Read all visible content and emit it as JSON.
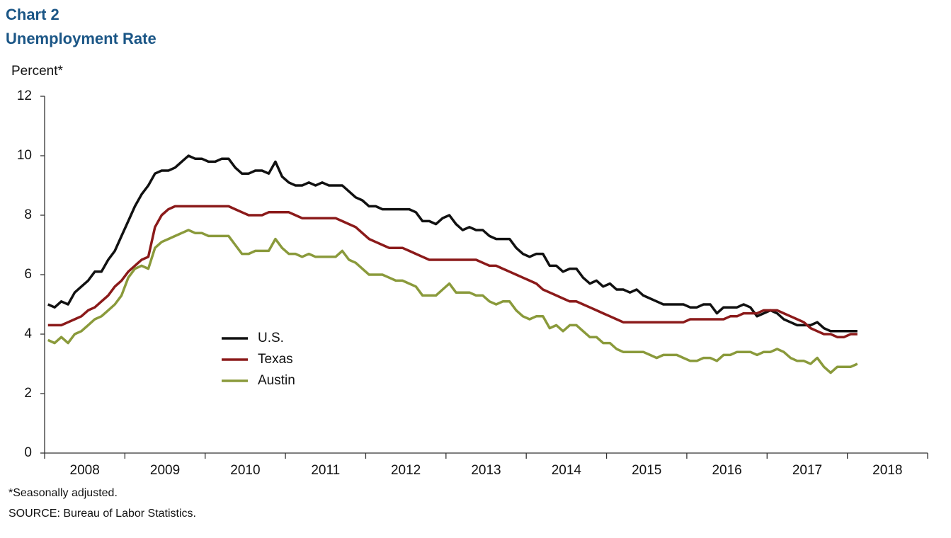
{
  "chart_data": {
    "type": "line",
    "title": "Chart 2",
    "subtitle": "Unemployment  Rate",
    "ylabel": "Percent*",
    "footnote": "*Seasonally adjusted.",
    "source": "SOURCE: Bureau of Labor Statistics.",
    "xlim": [
      2008,
      2019
    ],
    "xticks": [
      2008,
      2009,
      2010,
      2011,
      2012,
      2013,
      2014,
      2015,
      2016,
      2017,
      2018
    ],
    "ylim": [
      0,
      12
    ],
    "yticks": [
      0,
      2,
      4,
      6,
      8,
      10,
      12
    ],
    "x": [
      2008.042,
      2008.125,
      2008.208,
      2008.292,
      2008.375,
      2008.458,
      2008.542,
      2008.625,
      2008.708,
      2008.792,
      2008.875,
      2008.958,
      2009.042,
      2009.125,
      2009.208,
      2009.292,
      2009.375,
      2009.458,
      2009.542,
      2009.625,
      2009.708,
      2009.792,
      2009.875,
      2009.958,
      2010.042,
      2010.125,
      2010.208,
      2010.292,
      2010.375,
      2010.458,
      2010.542,
      2010.625,
      2010.708,
      2010.792,
      2010.875,
      2010.958,
      2011.042,
      2011.125,
      2011.208,
      2011.292,
      2011.375,
      2011.458,
      2011.542,
      2011.625,
      2011.708,
      2011.792,
      2011.875,
      2011.958,
      2012.042,
      2012.125,
      2012.208,
      2012.292,
      2012.375,
      2012.458,
      2012.542,
      2012.625,
      2012.708,
      2012.792,
      2012.875,
      2012.958,
      2013.042,
      2013.125,
      2013.208,
      2013.292,
      2013.375,
      2013.458,
      2013.542,
      2013.625,
      2013.708,
      2013.792,
      2013.875,
      2013.958,
      2014.042,
      2014.125,
      2014.208,
      2014.292,
      2014.375,
      2014.458,
      2014.542,
      2014.625,
      2014.708,
      2014.792,
      2014.875,
      2014.958,
      2015.042,
      2015.125,
      2015.208,
      2015.292,
      2015.375,
      2015.458,
      2015.542,
      2015.625,
      2015.708,
      2015.792,
      2015.875,
      2015.958,
      2016.042,
      2016.125,
      2016.208,
      2016.292,
      2016.375,
      2016.458,
      2016.542,
      2016.625,
      2016.708,
      2016.792,
      2016.875,
      2016.958,
      2017.042,
      2017.125,
      2017.208,
      2017.292,
      2017.375,
      2017.458,
      2017.542,
      2017.625,
      2017.708,
      2017.792,
      2017.875,
      2017.958,
      2018.042,
      2018.125
    ],
    "series": [
      {
        "name": "U.S.",
        "color": "#111111",
        "values": [
          5.0,
          4.9,
          5.1,
          5.0,
          5.4,
          5.6,
          5.8,
          6.1,
          6.1,
          6.5,
          6.8,
          7.3,
          7.8,
          8.3,
          8.7,
          9.0,
          9.4,
          9.5,
          9.5,
          9.6,
          9.8,
          10.0,
          9.9,
          9.9,
          9.8,
          9.8,
          9.9,
          9.9,
          9.6,
          9.4,
          9.4,
          9.5,
          9.5,
          9.4,
          9.8,
          9.3,
          9.1,
          9.0,
          9.0,
          9.1,
          9.0,
          9.1,
          9.0,
          9.0,
          9.0,
          8.8,
          8.6,
          8.5,
          8.3,
          8.3,
          8.2,
          8.2,
          8.2,
          8.2,
          8.2,
          8.1,
          7.8,
          7.8,
          7.7,
          7.9,
          8.0,
          7.7,
          7.5,
          7.6,
          7.5,
          7.5,
          7.3,
          7.2,
          7.2,
          7.2,
          6.9,
          6.7,
          6.6,
          6.7,
          6.7,
          6.3,
          6.3,
          6.1,
          6.2,
          6.2,
          5.9,
          5.7,
          5.8,
          5.6,
          5.7,
          5.5,
          5.5,
          5.4,
          5.5,
          5.3,
          5.2,
          5.1,
          5.0,
          5.0,
          5.0,
          5.0,
          4.9,
          4.9,
          5.0,
          5.0,
          4.7,
          4.9,
          4.9,
          4.9,
          5.0,
          4.9,
          4.6,
          4.7,
          4.8,
          4.7,
          4.5,
          4.4,
          4.3,
          4.3,
          4.3,
          4.4,
          4.2,
          4.1,
          4.1,
          4.1,
          4.1,
          4.1
        ]
      },
      {
        "name": "Texas",
        "color": "#8b1a1a",
        "values": [
          4.3,
          4.3,
          4.3,
          4.4,
          4.5,
          4.6,
          4.8,
          4.9,
          5.1,
          5.3,
          5.6,
          5.8,
          6.1,
          6.3,
          6.5,
          6.6,
          7.6,
          8.0,
          8.2,
          8.3,
          8.3,
          8.3,
          8.3,
          8.3,
          8.3,
          8.3,
          8.3,
          8.3,
          8.2,
          8.1,
          8.0,
          8.0,
          8.0,
          8.1,
          8.1,
          8.1,
          8.1,
          8.0,
          7.9,
          7.9,
          7.9,
          7.9,
          7.9,
          7.9,
          7.8,
          7.7,
          7.6,
          7.4,
          7.2,
          7.1,
          7.0,
          6.9,
          6.9,
          6.9,
          6.8,
          6.7,
          6.6,
          6.5,
          6.5,
          6.5,
          6.5,
          6.5,
          6.5,
          6.5,
          6.5,
          6.4,
          6.3,
          6.3,
          6.2,
          6.1,
          6.0,
          5.9,
          5.8,
          5.7,
          5.5,
          5.4,
          5.3,
          5.2,
          5.1,
          5.1,
          5.0,
          4.9,
          4.8,
          4.7,
          4.6,
          4.5,
          4.4,
          4.4,
          4.4,
          4.4,
          4.4,
          4.4,
          4.4,
          4.4,
          4.4,
          4.4,
          4.5,
          4.5,
          4.5,
          4.5,
          4.5,
          4.5,
          4.6,
          4.6,
          4.7,
          4.7,
          4.7,
          4.8,
          4.8,
          4.8,
          4.7,
          4.6,
          4.5,
          4.4,
          4.2,
          4.1,
          4.0,
          4.0,
          3.9,
          3.9,
          4.0,
          4.0
        ]
      },
      {
        "name": "Austin",
        "color": "#8a9a3b",
        "values": [
          3.8,
          3.7,
          3.9,
          3.7,
          4.0,
          4.1,
          4.3,
          4.5,
          4.6,
          4.8,
          5.0,
          5.3,
          5.9,
          6.2,
          6.3,
          6.2,
          6.9,
          7.1,
          7.2,
          7.3,
          7.4,
          7.5,
          7.4,
          7.4,
          7.3,
          7.3,
          7.3,
          7.3,
          7.0,
          6.7,
          6.7,
          6.8,
          6.8,
          6.8,
          7.2,
          6.9,
          6.7,
          6.7,
          6.6,
          6.7,
          6.6,
          6.6,
          6.6,
          6.6,
          6.8,
          6.5,
          6.4,
          6.2,
          6.0,
          6.0,
          6.0,
          5.9,
          5.8,
          5.8,
          5.7,
          5.6,
          5.3,
          5.3,
          5.3,
          5.5,
          5.7,
          5.4,
          5.4,
          5.4,
          5.3,
          5.3,
          5.1,
          5.0,
          5.1,
          5.1,
          4.8,
          4.6,
          4.5,
          4.6,
          4.6,
          4.2,
          4.3,
          4.1,
          4.3,
          4.3,
          4.1,
          3.9,
          3.9,
          3.7,
          3.7,
          3.5,
          3.4,
          3.4,
          3.4,
          3.4,
          3.3,
          3.2,
          3.3,
          3.3,
          3.3,
          3.2,
          3.1,
          3.1,
          3.2,
          3.2,
          3.1,
          3.3,
          3.3,
          3.4,
          3.4,
          3.4,
          3.3,
          3.4,
          3.4,
          3.5,
          3.4,
          3.2,
          3.1,
          3.1,
          3.0,
          3.2,
          2.9,
          2.7,
          2.9,
          2.9,
          2.9,
          3.0
        ]
      }
    ]
  }
}
